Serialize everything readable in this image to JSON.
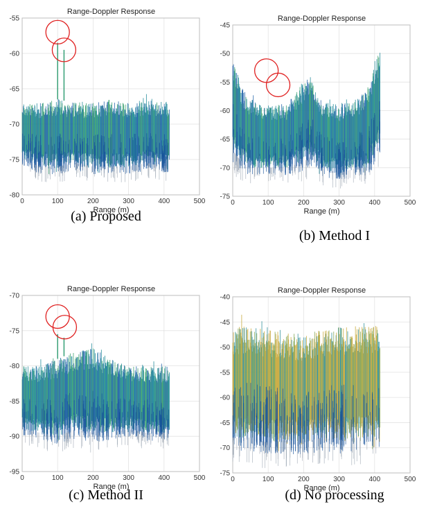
{
  "chart_data": [
    {
      "type": "line",
      "title": "Range-Doppler Response",
      "xlabel": "Range (m)",
      "ylabel": "",
      "xlim": [
        0,
        500
      ],
      "ylim": [
        -80,
        -55
      ],
      "xticks": [
        0,
        100,
        200,
        300,
        400,
        500
      ],
      "yticks": [
        -80,
        -75,
        -70,
        -65,
        -60,
        -55
      ],
      "caption": "(a) Proposed",
      "palette": "teal-blue",
      "series": [
        {
          "x": [
            0,
            50,
            100,
            150,
            200,
            250,
            300,
            350,
            415
          ],
          "upper": [
            -67,
            -67,
            -66.5,
            -67,
            -67,
            -66.5,
            -67,
            -66.5,
            -67
          ],
          "lower": [
            -75,
            -76,
            -76,
            -75.5,
            -76,
            -76,
            -76,
            -75.5,
            -76
          ]
        }
      ],
      "peaks": [
        {
          "x": 100,
          "y": -58.5
        },
        {
          "x": 118,
          "y": -59.5
        }
      ],
      "markers": [
        {
          "x": 100,
          "y": -57
        },
        {
          "x": 118,
          "y": -59.5
        }
      ]
    },
    {
      "type": "line",
      "title": "Range-Doppler Response",
      "xlabel": "Range (m)",
      "ylabel": "",
      "xlim": [
        0,
        500
      ],
      "ylim": [
        -75,
        -45
      ],
      "xticks": [
        0,
        100,
        200,
        300,
        400,
        500
      ],
      "yticks": [
        -75,
        -70,
        -65,
        -60,
        -55,
        -50,
        -45
      ],
      "caption": "(b) Method I",
      "palette": "teal-blue",
      "series": [
        {
          "x": [
            0,
            25,
            50,
            100,
            150,
            200,
            220,
            250,
            300,
            350,
            380,
            415
          ],
          "upper": [
            -50,
            -56,
            -58,
            -59,
            -59,
            -55,
            -54,
            -58,
            -59,
            -58,
            -56,
            -49
          ],
          "lower": [
            -67,
            -69,
            -70,
            -70,
            -70,
            -69,
            -68,
            -70,
            -71,
            -70,
            -70,
            -66
          ]
        }
      ],
      "peaks": [],
      "markers": [
        {
          "x": 95,
          "y": -53
        },
        {
          "x": 128,
          "y": -55.5
        }
      ]
    },
    {
      "type": "line",
      "title": "Range-Doppler Response",
      "xlabel": "Range (m)",
      "ylabel": "",
      "xlim": [
        0,
        500
      ],
      "ylim": [
        -95,
        -70
      ],
      "xticks": [
        0,
        100,
        200,
        300,
        400,
        500
      ],
      "yticks": [
        -95,
        -90,
        -85,
        -80,
        -75,
        -70
      ],
      "caption": "(c) Method II",
      "palette": "teal-blue",
      "series": [
        {
          "x": [
            0,
            50,
            100,
            150,
            200,
            250,
            300,
            350,
            415
          ],
          "upper": [
            -80,
            -80,
            -79,
            -78,
            -77.5,
            -79,
            -80,
            -80,
            -80
          ],
          "lower": [
            -89,
            -89.5,
            -90,
            -89,
            -89.5,
            -89.5,
            -89,
            -89.5,
            -89.5
          ]
        }
      ],
      "peaks": [
        {
          "x": 100,
          "y": -75.5
        },
        {
          "x": 118,
          "y": -76
        }
      ],
      "markers": [
        {
          "x": 100,
          "y": -73
        },
        {
          "x": 120,
          "y": -74.5
        }
      ]
    },
    {
      "type": "line",
      "title": "Range-Doppler Response",
      "xlabel": "Range (m)",
      "ylabel": "",
      "xlim": [
        0,
        500
      ],
      "ylim": [
        -75,
        -40
      ],
      "xticks": [
        0,
        100,
        200,
        300,
        400,
        500
      ],
      "yticks": [
        -75,
        -70,
        -65,
        -60,
        -55,
        -50,
        -45,
        -40
      ],
      "caption": "(d) No processing",
      "palette": "yellow-blue",
      "series": [
        {
          "x": [
            0,
            50,
            100,
            150,
            200,
            250,
            300,
            350,
            415
          ],
          "upper": [
            -46,
            -46,
            -46.5,
            -47,
            -47.5,
            -46.5,
            -46,
            -46,
            -45.5
          ],
          "lower": [
            -68,
            -68,
            -69,
            -68.5,
            -69,
            -68,
            -68.5,
            -68,
            -68
          ]
        }
      ],
      "peaks": [],
      "markers": []
    }
  ]
}
